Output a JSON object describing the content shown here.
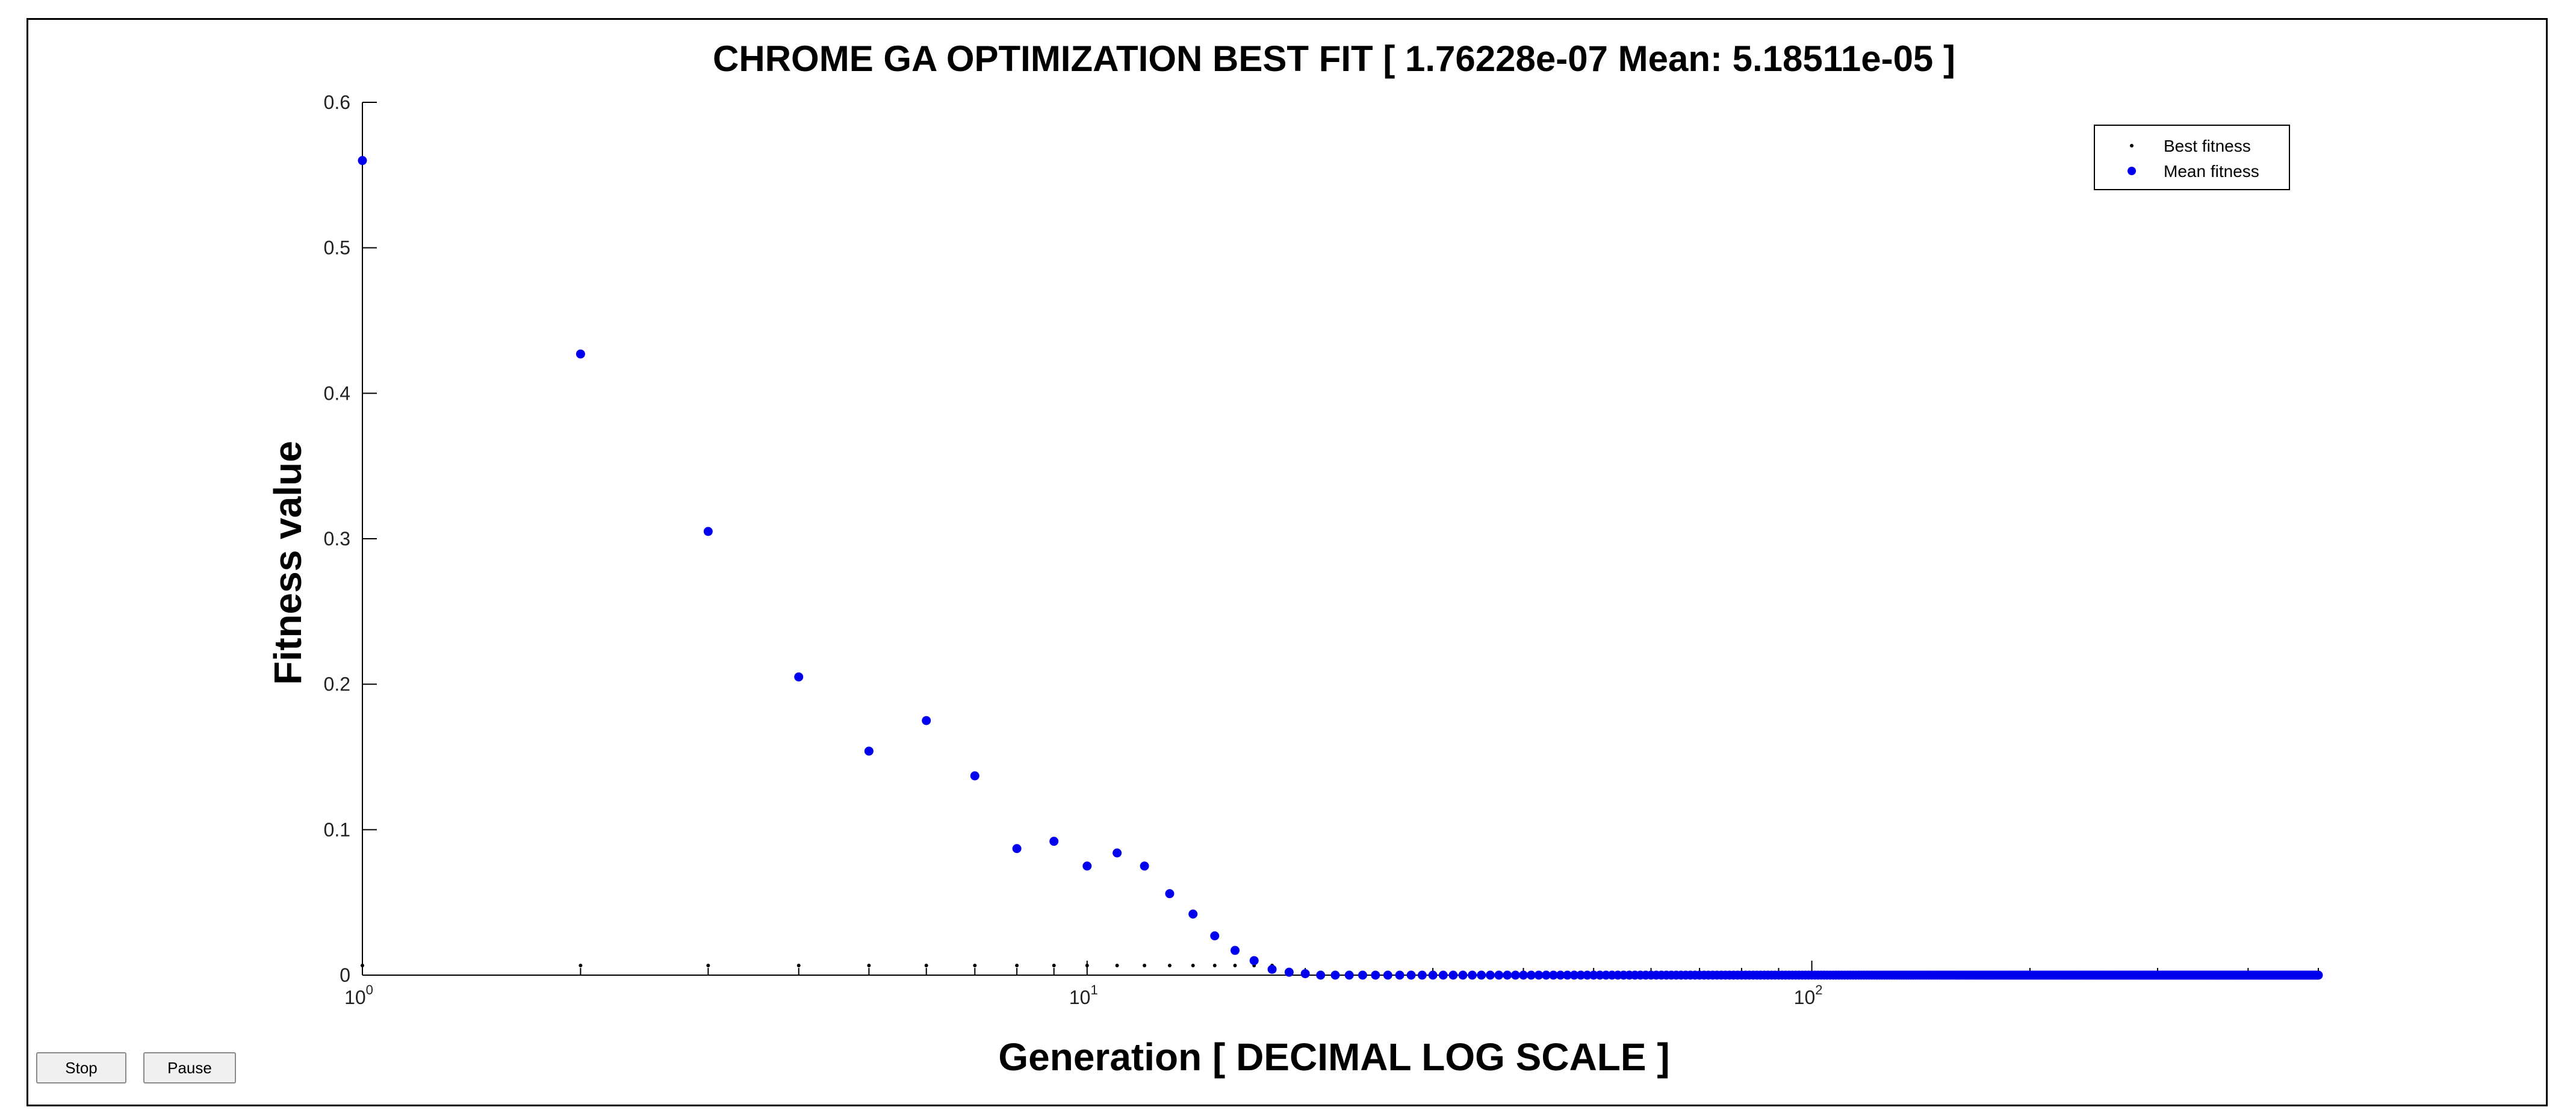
{
  "controls": {
    "stop_label": "Stop",
    "pause_label": "Pause"
  },
  "chart_data": {
    "type": "scatter",
    "title": "CHROME GA OPTIMIZATION BEST FIT [ 1.76228e-07 Mean: 5.18511e-05 ]",
    "xlabel": "Generation [ DECIMAL LOG SCALE ]",
    "ylabel": "Fitness value",
    "xscale": "log",
    "xlim": [
      1,
      500
    ],
    "ylim": [
      0,
      0.6
    ],
    "grid": false,
    "legend_position": "top-right",
    "y_ticks": [
      {
        "value": 0,
        "label": "0"
      },
      {
        "value": 0.1,
        "label": "0.1"
      },
      {
        "value": 0.2,
        "label": "0.2"
      },
      {
        "value": 0.3,
        "label": "0.3"
      },
      {
        "value": 0.4,
        "label": "0.4"
      },
      {
        "value": 0.5,
        "label": "0.5"
      },
      {
        "value": 0.6,
        "label": "0.6"
      }
    ],
    "x_ticks": [
      {
        "value": 1,
        "base": "10",
        "exp": "0"
      },
      {
        "value": 10,
        "base": "10",
        "exp": "1"
      },
      {
        "value": 100,
        "base": "10",
        "exp": "2"
      }
    ],
    "series": [
      {
        "name": "Best fitness",
        "color": "#000000",
        "marker": "small-dot",
        "x_range": [
          1,
          500
        ],
        "y_constant": 0.0,
        "x": [
          1,
          2,
          3,
          4,
          5,
          6,
          7,
          8,
          9,
          10,
          11,
          12,
          13,
          14,
          15,
          16,
          17,
          18
        ]
      },
      {
        "name": "Mean fitness",
        "color": "#0000ee",
        "marker": "dot",
        "x": [
          1,
          2,
          3,
          4,
          5,
          6,
          7,
          8,
          9,
          10,
          11,
          12,
          13,
          14,
          15,
          16,
          17,
          18,
          19,
          20
        ],
        "y": [
          0.56,
          0.427,
          0.305,
          0.205,
          0.154,
          0.175,
          0.137,
          0.087,
          0.092,
          0.075,
          0.084,
          0.075,
          0.056,
          0.042,
          0.027,
          0.017,
          0.01,
          0.004,
          0.002,
          0.001
        ],
        "tail_x_range": [
          21,
          500
        ],
        "tail_y": 0.0
      }
    ]
  }
}
